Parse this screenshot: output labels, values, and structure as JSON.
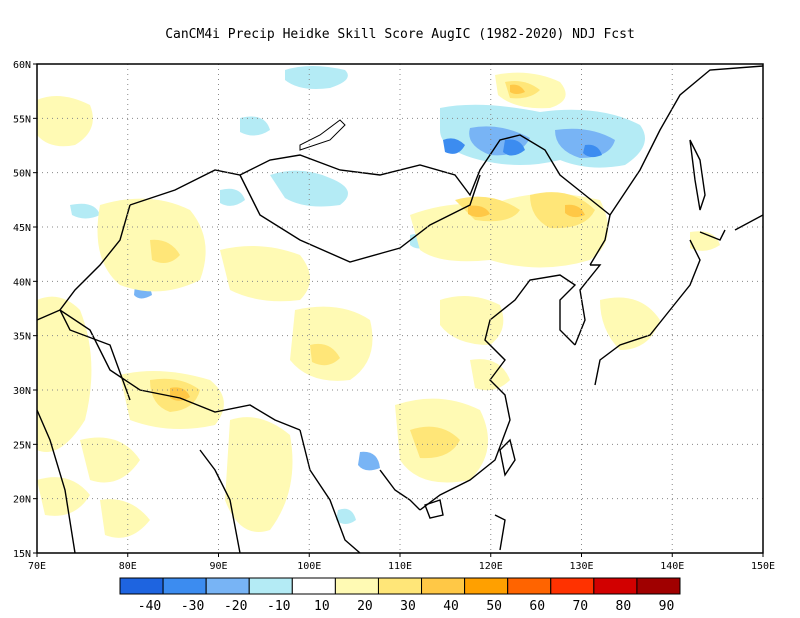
{
  "title": "CanCM4i Precip Heidke Skill Score AugIC (1982-2020) NDJ Fcst",
  "map": {
    "region": "East and South Asia",
    "lon_range": [
      70,
      150
    ],
    "lat_range": [
      15,
      60
    ],
    "grid": "dotted",
    "lon_ticks": [
      "70E",
      "80E",
      "90E",
      "100E",
      "110E",
      "120E",
      "130E",
      "140E",
      "150E"
    ],
    "lat_ticks": [
      "15N",
      "20N",
      "25N",
      "30N",
      "35N",
      "40N",
      "45N",
      "50N",
      "55N",
      "60N"
    ]
  },
  "colorbar": {
    "labels": [
      "-40",
      "-30",
      "-20",
      "-10",
      "10",
      "20",
      "30",
      "40",
      "50",
      "60",
      "70",
      "80",
      "90"
    ],
    "colors": [
      "#1e64e0",
      "#3c8cf0",
      "#78b4f5",
      "#b4ebf5",
      "#ffffff",
      "#fffab4",
      "#ffe678",
      "#ffc846",
      "#ffa000",
      "#ff6400",
      "#ff3200",
      "#d20000",
      "#a00000"
    ]
  },
  "regions": [
    {
      "name": "mongolia-siberia-negative",
      "value": -20,
      "lon": [
        112,
        132
      ],
      "lat": [
        50,
        55
      ]
    },
    {
      "name": "siberia-positive",
      "value": 30,
      "lon": [
        120,
        127
      ],
      "lat": [
        56,
        58
      ]
    },
    {
      "name": "manchuria-positive",
      "value": 30,
      "lon": [
        117,
        130
      ],
      "lat": [
        44,
        48
      ]
    },
    {
      "name": "tibet-positive",
      "value": 40,
      "lon": [
        83,
        93
      ],
      "lat": [
        28,
        31
      ]
    },
    {
      "name": "sichuan-positive",
      "value": 30,
      "lon": [
        100,
        104
      ],
      "lat": [
        31,
        34
      ]
    },
    {
      "name": "south-china-positive",
      "value": 20,
      "lon": [
        106,
        120
      ],
      "lat": [
        22,
        28
      ]
    }
  ]
}
